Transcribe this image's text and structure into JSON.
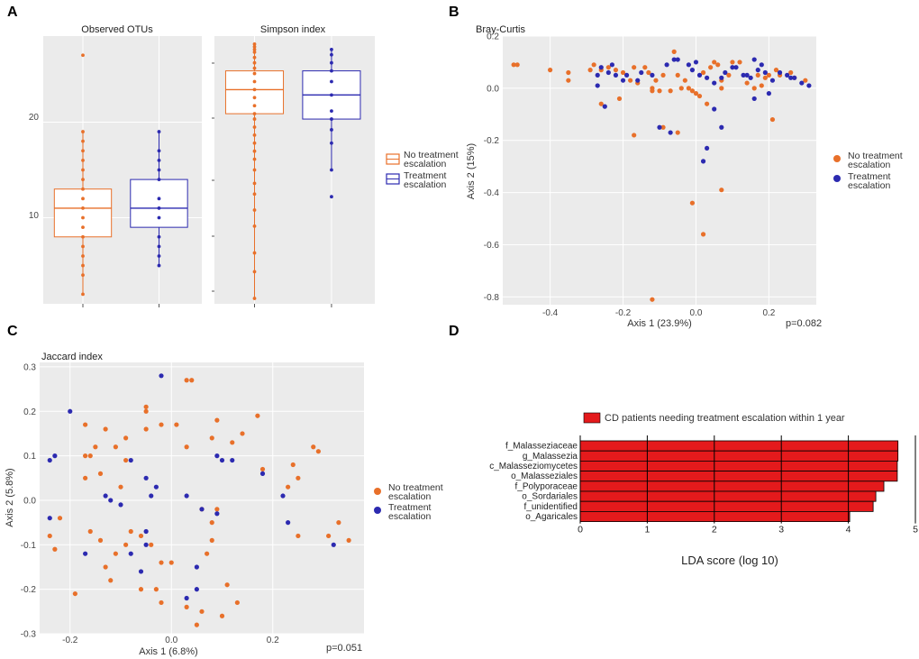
{
  "colors": {
    "no_escalation": "#e8702a",
    "escalation": "#2c2ab0",
    "lda_bar": "#e41a1c",
    "panel_bg": "#ebebeb",
    "grid": "#ffffff"
  },
  "panel_labels": {
    "a": "A",
    "b": "B",
    "c": "C",
    "d": "D"
  },
  "legend": {
    "no_escalation_line1": "No treatment",
    "no_escalation_line2": "escalation",
    "escalation_line1": "Treatment",
    "escalation_line2": "escalation"
  },
  "chart_data": [
    {
      "id": "A1",
      "type": "box",
      "title": "Observed OTUs",
      "ylim": [
        1,
        29
      ],
      "yticks": [
        10,
        20
      ],
      "groups": [
        {
          "name": "No treatment escalation",
          "q1": 8,
          "median": 11,
          "q3": 13,
          "whisker_low": 2,
          "whisker_high": 19,
          "points": [
            2,
            4,
            5,
            6,
            7,
            8,
            9,
            10,
            11,
            12,
            13,
            14,
            15,
            16,
            17,
            18,
            19,
            27
          ]
        },
        {
          "name": "Treatment escalation",
          "q1": 9,
          "median": 11,
          "q3": 14,
          "whisker_low": 5,
          "whisker_high": 19,
          "points": [
            5,
            6,
            7,
            8,
            10,
            11,
            12,
            14,
            15,
            16,
            17,
            19
          ]
        }
      ]
    },
    {
      "id": "A2",
      "type": "box",
      "title": "Simpson index",
      "ylim": [
        0,
        1
      ],
      "yticks": [],
      "groups": [
        {
          "name": "No treatment escalation",
          "q1": 0.71,
          "median": 0.8,
          "q3": 0.87,
          "whisker_low": 0.02,
          "whisker_high": 0.96,
          "points": [
            0.02,
            0.12,
            0.19,
            0.29,
            0.35,
            0.41,
            0.45,
            0.5,
            0.54,
            0.57,
            0.6,
            0.63,
            0.66,
            0.69,
            0.71,
            0.74,
            0.77,
            0.8,
            0.83,
            0.86,
            0.88,
            0.9,
            0.92,
            0.94,
            0.95,
            0.96,
            0.97
          ]
        },
        {
          "name": "Treatment escalation",
          "q1": 0.69,
          "median": 0.78,
          "q3": 0.87,
          "whisker_low": 0.5,
          "whisker_high": 0.95,
          "points": [
            0.4,
            0.5,
            0.6,
            0.65,
            0.69,
            0.72,
            0.78,
            0.83,
            0.87,
            0.9,
            0.93,
            0.95
          ]
        }
      ]
    },
    {
      "id": "B",
      "type": "scatter",
      "title": "Bray-Curtis",
      "xlabel": "Axis 1 (23.9%)",
      "ylabel": "Axis 2 (15%)",
      "annotation": "p=0.082",
      "xlim": [
        -0.53,
        0.33
      ],
      "ylim": [
        -0.83,
        0.2
      ],
      "xticks": [
        -0.4,
        -0.2,
        0.0,
        0.2
      ],
      "xtick_labels": [
        "-0.4",
        "-0.2",
        "0.0",
        "0.2"
      ],
      "yticks": [
        0.2,
        0.0,
        -0.2,
        -0.4,
        -0.6,
        -0.8
      ],
      "ytick_labels": [
        "0.2",
        "0.0",
        "-0.2",
        "-0.4",
        "-0.6",
        "-0.8"
      ],
      "series": [
        {
          "name": "No treatment escalation",
          "points": [
            [
              -0.5,
              0.09
            ],
            [
              -0.49,
              0.09
            ],
            [
              -0.4,
              0.07
            ],
            [
              -0.35,
              0.06
            ],
            [
              -0.35,
              0.03
            ],
            [
              -0.29,
              0.07
            ],
            [
              -0.28,
              0.09
            ],
            [
              -0.26,
              0.07
            ],
            [
              -0.24,
              0.08
            ],
            [
              -0.22,
              0.07
            ],
            [
              -0.2,
              0.06
            ],
            [
              -0.18,
              0.03
            ],
            [
              -0.17,
              0.08
            ],
            [
              -0.16,
              0.02
            ],
            [
              -0.14,
              0.08
            ],
            [
              -0.13,
              0.06
            ],
            [
              -0.12,
              0.0
            ],
            [
              -0.11,
              0.03
            ],
            [
              -0.12,
              -0.01
            ],
            [
              -0.1,
              -0.01
            ],
            [
              -0.09,
              0.05
            ],
            [
              -0.07,
              -0.01
            ],
            [
              -0.06,
              0.14
            ],
            [
              -0.05,
              0.05
            ],
            [
              -0.04,
              0.0
            ],
            [
              -0.03,
              0.03
            ],
            [
              -0.02,
              0.0
            ],
            [
              -0.01,
              -0.01
            ],
            [
              0.0,
              -0.02
            ],
            [
              0.01,
              -0.03
            ],
            [
              0.02,
              0.06
            ],
            [
              0.04,
              0.08
            ],
            [
              0.05,
              0.1
            ],
            [
              0.06,
              0.09
            ],
            [
              0.07,
              0.03
            ],
            [
              0.07,
              0.0
            ],
            [
              0.09,
              0.05
            ],
            [
              0.1,
              0.1
            ],
            [
              0.12,
              0.1
            ],
            [
              0.14,
              0.02
            ],
            [
              0.16,
              0.0
            ],
            [
              0.17,
              0.05
            ],
            [
              0.18,
              0.01
            ],
            [
              0.19,
              0.04
            ],
            [
              0.2,
              0.05
            ],
            [
              0.21,
              -0.12
            ],
            [
              0.22,
              0.07
            ],
            [
              0.23,
              0.05
            ],
            [
              0.26,
              0.06
            ],
            [
              0.27,
              0.04
            ],
            [
              0.3,
              0.03
            ],
            [
              -0.17,
              -0.18
            ],
            [
              -0.09,
              -0.15
            ],
            [
              -0.05,
              -0.17
            ],
            [
              -0.01,
              -0.44
            ],
            [
              0.02,
              -0.56
            ],
            [
              0.07,
              -0.39
            ],
            [
              -0.12,
              -0.81
            ],
            [
              -0.21,
              -0.04
            ],
            [
              -0.26,
              -0.06
            ],
            [
              0.03,
              -0.06
            ]
          ]
        },
        {
          "name": "Treatment escalation",
          "points": [
            [
              -0.27,
              0.05
            ],
            [
              -0.26,
              0.08
            ],
            [
              -0.24,
              0.06
            ],
            [
              -0.23,
              0.09
            ],
            [
              -0.22,
              0.05
            ],
            [
              -0.2,
              0.03
            ],
            [
              -0.19,
              0.05
            ],
            [
              -0.16,
              0.03
            ],
            [
              -0.15,
              0.06
            ],
            [
              -0.12,
              0.05
            ],
            [
              -0.08,
              0.09
            ],
            [
              -0.06,
              0.11
            ],
            [
              -0.05,
              0.11
            ],
            [
              -0.02,
              0.09
            ],
            [
              -0.01,
              0.07
            ],
            [
              0.0,
              0.1
            ],
            [
              0.01,
              0.05
            ],
            [
              0.03,
              0.04
            ],
            [
              0.05,
              0.02
            ],
            [
              0.07,
              0.04
            ],
            [
              0.08,
              0.06
            ],
            [
              0.1,
              0.08
            ],
            [
              0.11,
              0.08
            ],
            [
              0.13,
              0.05
            ],
            [
              0.14,
              0.05
            ],
            [
              0.16,
              0.11
            ],
            [
              0.17,
              0.07
            ],
            [
              0.18,
              0.09
            ],
            [
              0.19,
              0.06
            ],
            [
              0.21,
              0.03
            ],
            [
              0.23,
              0.06
            ],
            [
              0.25,
              0.05
            ],
            [
              0.26,
              0.04
            ],
            [
              0.27,
              0.04
            ],
            [
              0.29,
              0.02
            ],
            [
              0.31,
              0.01
            ],
            [
              -0.27,
              0.01
            ],
            [
              -0.25,
              -0.07
            ],
            [
              -0.1,
              -0.15
            ],
            [
              -0.07,
              -0.17
            ],
            [
              0.05,
              -0.08
            ],
            [
              0.07,
              -0.15
            ],
            [
              0.03,
              -0.23
            ],
            [
              0.02,
              -0.28
            ],
            [
              0.16,
              -0.04
            ],
            [
              0.2,
              -0.02
            ],
            [
              0.15,
              0.04
            ]
          ]
        }
      ]
    },
    {
      "id": "C",
      "type": "scatter",
      "title": "Jaccard index",
      "xlabel": "Axis 1 (6.8%)",
      "ylabel": "Axis 2 (5.8%)",
      "annotation": "p=0.051",
      "xlim": [
        -0.26,
        0.38
      ],
      "ylim": [
        -0.3,
        0.31
      ],
      "xticks": [
        -0.2,
        0.0,
        0.2
      ],
      "xtick_labels": [
        "-0.2",
        "0.0",
        "0.2"
      ],
      "yticks": [
        0.3,
        0.2,
        0.1,
        0.0,
        -0.1,
        -0.2,
        -0.3
      ],
      "ytick_labels": [
        "0.3",
        "0.2",
        "0.1",
        "0.0",
        "-0.1",
        "-0.2",
        "-0.3"
      ],
      "series": [
        {
          "name": "No treatment escalation",
          "points": [
            [
              0.03,
              0.27
            ],
            [
              0.04,
              0.27
            ],
            [
              -0.05,
              0.21
            ],
            [
              -0.05,
              0.2
            ],
            [
              -0.17,
              0.17
            ],
            [
              -0.13,
              0.16
            ],
            [
              0.09,
              0.18
            ],
            [
              0.14,
              0.15
            ],
            [
              0.17,
              0.19
            ],
            [
              -0.15,
              0.12
            ],
            [
              -0.11,
              0.12
            ],
            [
              -0.09,
              0.14
            ],
            [
              -0.05,
              0.16
            ],
            [
              -0.02,
              0.17
            ],
            [
              0.01,
              0.17
            ],
            [
              -0.17,
              0.1
            ],
            [
              -0.16,
              0.1
            ],
            [
              -0.09,
              0.09
            ],
            [
              0.03,
              0.12
            ],
            [
              0.08,
              0.14
            ],
            [
              0.12,
              0.13
            ],
            [
              0.28,
              0.12
            ],
            [
              0.29,
              0.11
            ],
            [
              -0.14,
              0.06
            ],
            [
              -0.1,
              0.03
            ],
            [
              -0.17,
              0.05
            ],
            [
              0.24,
              0.08
            ],
            [
              0.18,
              0.07
            ],
            [
              0.25,
              0.05
            ],
            [
              0.23,
              0.03
            ],
            [
              -0.22,
              -0.04
            ],
            [
              -0.24,
              -0.08
            ],
            [
              -0.23,
              -0.11
            ],
            [
              -0.16,
              -0.07
            ],
            [
              -0.14,
              -0.09
            ],
            [
              -0.08,
              -0.07
            ],
            [
              -0.06,
              -0.08
            ],
            [
              -0.04,
              -0.1
            ],
            [
              0.06,
              -0.02
            ],
            [
              0.08,
              -0.05
            ],
            [
              0.09,
              -0.02
            ],
            [
              0.07,
              -0.12
            ],
            [
              -0.13,
              -0.15
            ],
            [
              -0.11,
              -0.12
            ],
            [
              -0.09,
              -0.1
            ],
            [
              -0.02,
              -0.14
            ],
            [
              0.0,
              -0.14
            ],
            [
              0.08,
              -0.09
            ],
            [
              0.25,
              -0.08
            ],
            [
              0.31,
              -0.08
            ],
            [
              0.35,
              -0.09
            ],
            [
              0.33,
              -0.05
            ],
            [
              -0.19,
              -0.21
            ],
            [
              -0.12,
              -0.18
            ],
            [
              -0.06,
              -0.2
            ],
            [
              -0.03,
              -0.2
            ],
            [
              -0.02,
              -0.23
            ],
            [
              0.03,
              -0.24
            ],
            [
              0.06,
              -0.25
            ],
            [
              0.1,
              -0.26
            ],
            [
              0.13,
              -0.23
            ],
            [
              0.05,
              -0.28
            ],
            [
              0.11,
              -0.19
            ]
          ]
        },
        {
          "name": "Treatment escalation",
          "points": [
            [
              -0.02,
              0.28
            ],
            [
              -0.2,
              0.2
            ],
            [
              -0.23,
              0.1
            ],
            [
              -0.24,
              0.09
            ],
            [
              -0.08,
              0.09
            ],
            [
              0.09,
              0.1
            ],
            [
              0.1,
              0.09
            ],
            [
              0.12,
              0.09
            ],
            [
              0.18,
              0.06
            ],
            [
              -0.13,
              0.01
            ],
            [
              -0.12,
              0.0
            ],
            [
              -0.1,
              -0.01
            ],
            [
              -0.05,
              0.05
            ],
            [
              -0.03,
              0.03
            ],
            [
              -0.04,
              0.01
            ],
            [
              0.03,
              0.01
            ],
            [
              0.06,
              -0.02
            ],
            [
              0.22,
              0.01
            ],
            [
              -0.24,
              -0.04
            ],
            [
              -0.17,
              -0.12
            ],
            [
              -0.05,
              -0.07
            ],
            [
              -0.05,
              -0.1
            ],
            [
              -0.08,
              -0.12
            ],
            [
              -0.06,
              -0.16
            ],
            [
              0.05,
              -0.15
            ],
            [
              0.09,
              -0.03
            ],
            [
              0.23,
              -0.05
            ],
            [
              0.32,
              -0.1
            ],
            [
              0.03,
              -0.22
            ],
            [
              0.05,
              -0.2
            ]
          ]
        }
      ]
    },
    {
      "id": "D",
      "type": "bar",
      "orientation": "horizontal",
      "legend_label": "CD patients needing treatment escalation within 1 year",
      "xlabel": "LDA score (log 10)",
      "xlim": [
        0,
        5
      ],
      "xticks": [
        0,
        1,
        2,
        3,
        4,
        5
      ],
      "xtick_labels": [
        "0",
        "1",
        "2",
        "3",
        "4",
        "5"
      ],
      "categories": [
        "f_Malasseziaceae",
        "g_Malassezia",
        "c_Malasseziomycetes",
        "o_Malasseziales",
        "f_Polyporaceae",
        "o_Sordariales",
        "f_unidentified",
        "o_Agaricales"
      ],
      "values": [
        4.74,
        4.74,
        4.73,
        4.73,
        4.53,
        4.41,
        4.37,
        4.02
      ]
    }
  ]
}
